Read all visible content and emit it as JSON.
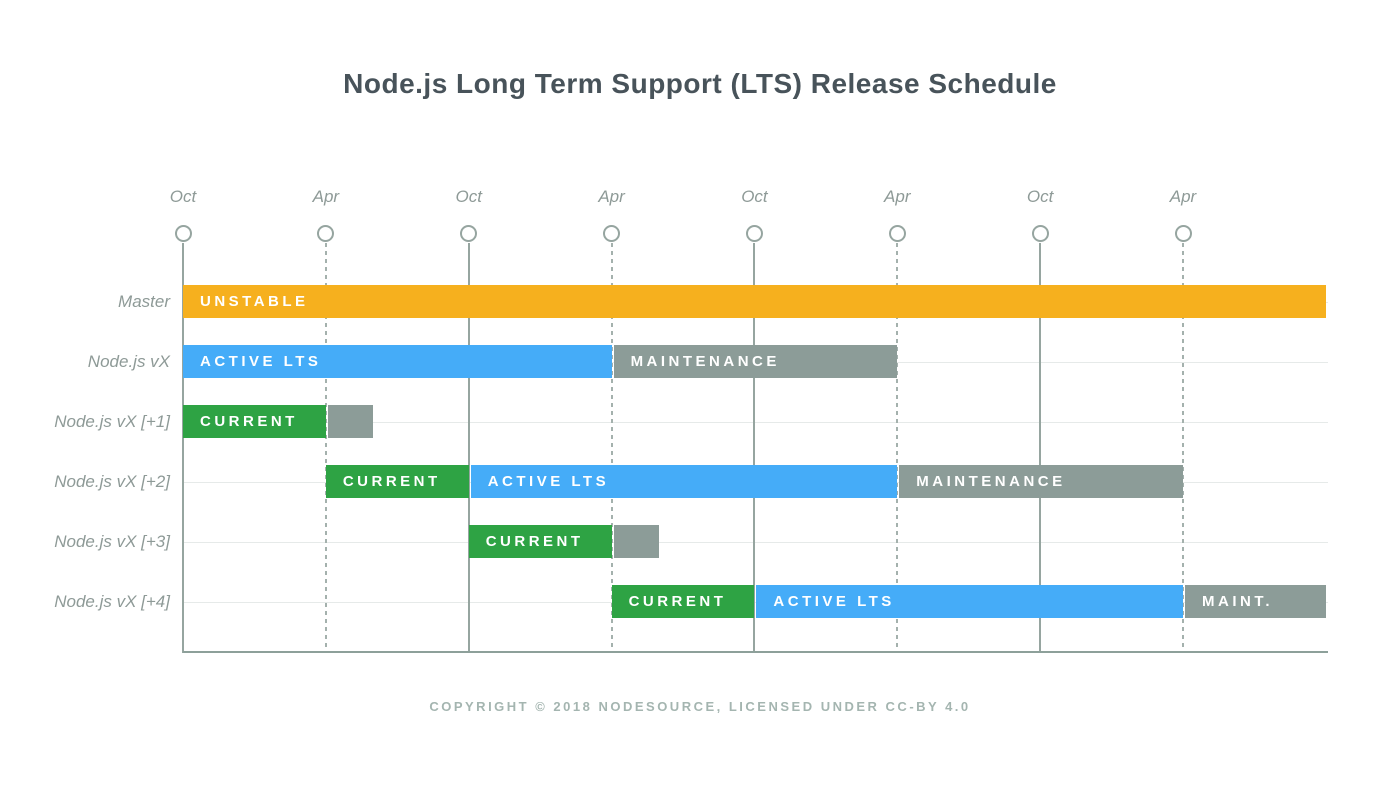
{
  "title": "Node.js Long Term Support (LTS) Release Schedule",
  "footer": "COPYRIGHT © 2018 NODESOURCE, LICENSED UNDER CC-BY 4.0",
  "chart_data": {
    "type": "gantt",
    "title": "Node.js Long Term Support (LTS) Release Schedule",
    "x_axis": {
      "unit": "months",
      "tick_labels": [
        "Oct",
        "Apr",
        "Oct",
        "Apr",
        "Oct",
        "Apr",
        "Oct",
        "Apr"
      ],
      "tick_months": [
        0,
        6,
        12,
        18,
        24,
        30,
        36,
        42
      ],
      "tick_line_styles": [
        "solid",
        "dashed",
        "solid",
        "dashed",
        "solid",
        "dashed",
        "solid",
        "dashed"
      ],
      "range_months": [
        0,
        48
      ]
    },
    "rows": [
      {
        "label": "Master",
        "bars": [
          {
            "phase": "unstable",
            "label": "UNSTABLE",
            "start": 0,
            "end": 48
          }
        ]
      },
      {
        "label": "Node.js vX",
        "bars": [
          {
            "phase": "active",
            "label": "ACTIVE LTS",
            "start": 0,
            "end": 18
          },
          {
            "phase": "maintenance",
            "label": "MAINTENANCE",
            "start": 18,
            "end": 30
          }
        ]
      },
      {
        "label": "Node.js vX [+1]",
        "bars": [
          {
            "phase": "current",
            "label": "CURRENT",
            "start": 0,
            "end": 6
          },
          {
            "phase": "maintenance",
            "label": "",
            "start": 6,
            "end": 8
          }
        ]
      },
      {
        "label": "Node.js vX [+2]",
        "bars": [
          {
            "phase": "current",
            "label": "CURRENT",
            "start": 6,
            "end": 12
          },
          {
            "phase": "active",
            "label": "ACTIVE LTS",
            "start": 12,
            "end": 30
          },
          {
            "phase": "maintenance",
            "label": "MAINTENANCE",
            "start": 30,
            "end": 42
          }
        ]
      },
      {
        "label": "Node.js vX [+3]",
        "bars": [
          {
            "phase": "current",
            "label": "CURRENT",
            "start": 12,
            "end": 18
          },
          {
            "phase": "maintenance",
            "label": "",
            "start": 18,
            "end": 20
          }
        ]
      },
      {
        "label": "Node.js vX [+4]",
        "bars": [
          {
            "phase": "current",
            "label": "CURRENT",
            "start": 18,
            "end": 24
          },
          {
            "phase": "active",
            "label": "ACTIVE LTS",
            "start": 24,
            "end": 42
          },
          {
            "phase": "maintenance",
            "label": "MAINT.",
            "start": 42,
            "end": 48
          }
        ]
      }
    ],
    "colors": {
      "unstable": "#f6b01e",
      "active": "#45acf8",
      "current": "#2ea344",
      "maintenance": "#8c9c98",
      "axis": "#96a5a0",
      "grid_faint": "#e6eae9",
      "title_text": "#48535a",
      "label_text": "#8e9a97",
      "footer_text": "#a4b5b0"
    },
    "legend": "none",
    "grid": "vertical ticks solid (Oct) and dashed (Apr), faint horizontal row lines"
  }
}
